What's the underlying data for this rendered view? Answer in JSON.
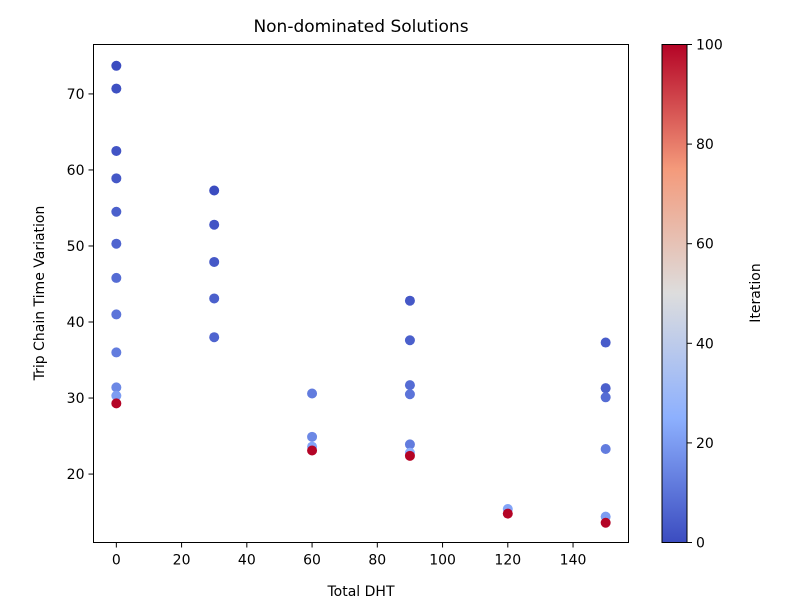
{
  "chart_data": {
    "type": "scatter",
    "title": "Non-dominated Solutions",
    "xlabel": "Total DHT",
    "ylabel": "Trip Chain Time Variation",
    "xlim": [
      -7,
      157
    ],
    "ylim": [
      11,
      76.5
    ],
    "xticks": [
      0,
      20,
      40,
      60,
      80,
      100,
      120,
      140
    ],
    "yticks": [
      20,
      30,
      40,
      50,
      60,
      70
    ],
    "grid": false,
    "colormap": "coolwarm",
    "colorbar": {
      "label": "Iteration",
      "range": [
        0,
        100
      ],
      "ticks": [
        0,
        20,
        40,
        60,
        80,
        100
      ]
    },
    "points": [
      {
        "x": 0,
        "y": 73.7,
        "c": 0
      },
      {
        "x": 0,
        "y": 70.7,
        "c": 1
      },
      {
        "x": 0,
        "y": 62.5,
        "c": 2
      },
      {
        "x": 0,
        "y": 58.9,
        "c": 3
      },
      {
        "x": 0,
        "y": 54.5,
        "c": 5
      },
      {
        "x": 0,
        "y": 50.3,
        "c": 6
      },
      {
        "x": 0,
        "y": 45.8,
        "c": 8
      },
      {
        "x": 0,
        "y": 41.0,
        "c": 10
      },
      {
        "x": 0,
        "y": 36.0,
        "c": 12
      },
      {
        "x": 0,
        "y": 31.4,
        "c": 15
      },
      {
        "x": 0,
        "y": 30.3,
        "c": 20
      },
      {
        "x": 0,
        "y": 29.3,
        "c": 100
      },
      {
        "x": 30,
        "y": 57.3,
        "c": 0
      },
      {
        "x": 30,
        "y": 52.8,
        "c": 2
      },
      {
        "x": 30,
        "y": 47.9,
        "c": 3
      },
      {
        "x": 30,
        "y": 43.1,
        "c": 5
      },
      {
        "x": 30,
        "y": 38.0,
        "c": 6
      },
      {
        "x": 60,
        "y": 30.6,
        "c": 12
      },
      {
        "x": 60,
        "y": 24.9,
        "c": 15
      },
      {
        "x": 60,
        "y": 23.6,
        "c": 22
      },
      {
        "x": 60,
        "y": 23.1,
        "c": 100
      },
      {
        "x": 90,
        "y": 42.8,
        "c": 3
      },
      {
        "x": 90,
        "y": 37.6,
        "c": 5
      },
      {
        "x": 90,
        "y": 31.7,
        "c": 8
      },
      {
        "x": 90,
        "y": 30.5,
        "c": 10
      },
      {
        "x": 90,
        "y": 23.9,
        "c": 12
      },
      {
        "x": 90,
        "y": 22.8,
        "c": 25
      },
      {
        "x": 90,
        "y": 22.4,
        "c": 100
      },
      {
        "x": 120,
        "y": 15.4,
        "c": 22
      },
      {
        "x": 120,
        "y": 14.8,
        "c": 100
      },
      {
        "x": 150,
        "y": 37.3,
        "c": 4
      },
      {
        "x": 150,
        "y": 31.3,
        "c": 5
      },
      {
        "x": 150,
        "y": 30.1,
        "c": 8
      },
      {
        "x": 150,
        "y": 23.3,
        "c": 12
      },
      {
        "x": 150,
        "y": 14.4,
        "c": 20
      },
      {
        "x": 150,
        "y": 13.6,
        "c": 100
      }
    ]
  }
}
